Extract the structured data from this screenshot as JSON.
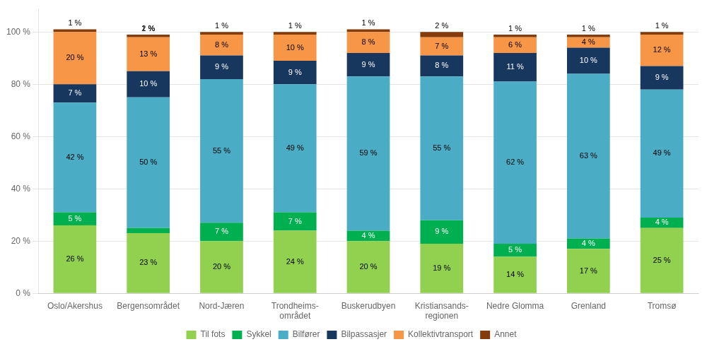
{
  "chart_data": {
    "type": "bar",
    "stacked": true,
    "data_labels": true,
    "grid": true,
    "legend": "bottom",
    "categories": [
      "Oslo/Akershus",
      "Bergensområdet",
      "Nord-Jæren",
      "Trondheims-\nområdet",
      "Buskerudbyen",
      "Kristiansands-\nregionen",
      "Nedre Glomma",
      "Grenland",
      "Tromsø"
    ],
    "series": [
      {
        "name": "Til fots",
        "color": "#92d050",
        "values": [
          26,
          23,
          20,
          24,
          20,
          19,
          14,
          17,
          25
        ],
        "value_labels": [
          "26 %",
          "23 %",
          "20 %",
          "24 %",
          "20 %",
          "19 %",
          "14 %",
          "17 %",
          "25 %"
        ]
      },
      {
        "name": "Sykkel",
        "color": "#00b050",
        "values": [
          5,
          2,
          7,
          7,
          4,
          9,
          5,
          4,
          4
        ],
        "value_labels": [
          "5 %",
          "2 %",
          "7 %",
          "7 %",
          "4 %",
          "9 %",
          "5 %",
          "4 %",
          "4 %"
        ]
      },
      {
        "name": "Bilfører",
        "color": "#4bacc6",
        "values": [
          42,
          50,
          55,
          49,
          59,
          55,
          62,
          63,
          49
        ],
        "value_labels": [
          "42 %",
          "50 %",
          "55 %",
          "49 %",
          "59 %",
          "55 %",
          "62 %",
          "63 %",
          "49 %"
        ]
      },
      {
        "name": "Bilpassasjer",
        "color": "#17375e",
        "values": [
          7,
          10,
          9,
          9,
          9,
          8,
          11,
          10,
          9
        ],
        "value_labels": [
          "7 %",
          "10 %",
          "9 %",
          "9 %",
          "9 %",
          "8 %",
          "11 %",
          "10 %",
          "9 %"
        ]
      },
      {
        "name": "Kollektivtransport",
        "color": "#f79646",
        "values": [
          20,
          13,
          8,
          10,
          8,
          7,
          6,
          4,
          12
        ],
        "value_labels": [
          "20 %",
          "13 %",
          "8 %",
          "10 %",
          "8 %",
          "7 %",
          "6 %",
          "4 %",
          "12 %"
        ]
      },
      {
        "name": "Annet",
        "color": "#843c0c",
        "values": [
          1,
          1,
          1,
          1,
          1,
          2,
          1,
          1,
          1
        ],
        "value_labels": [
          "1 %",
          "1 %",
          "1 %",
          "1 %",
          "1 %",
          "2 %",
          "1 %",
          "1 %",
          "1 %"
        ]
      }
    ],
    "ylim": [
      0,
      109
    ],
    "yticks": [
      {
        "value": 0,
        "label": "0 %"
      },
      {
        "value": 20,
        "label": "20 %"
      },
      {
        "value": 40,
        "label": "40 %"
      },
      {
        "value": 60,
        "label": "60 %"
      },
      {
        "value": 80,
        "label": "80 %"
      },
      {
        "value": 100,
        "label": "100 %"
      }
    ]
  }
}
